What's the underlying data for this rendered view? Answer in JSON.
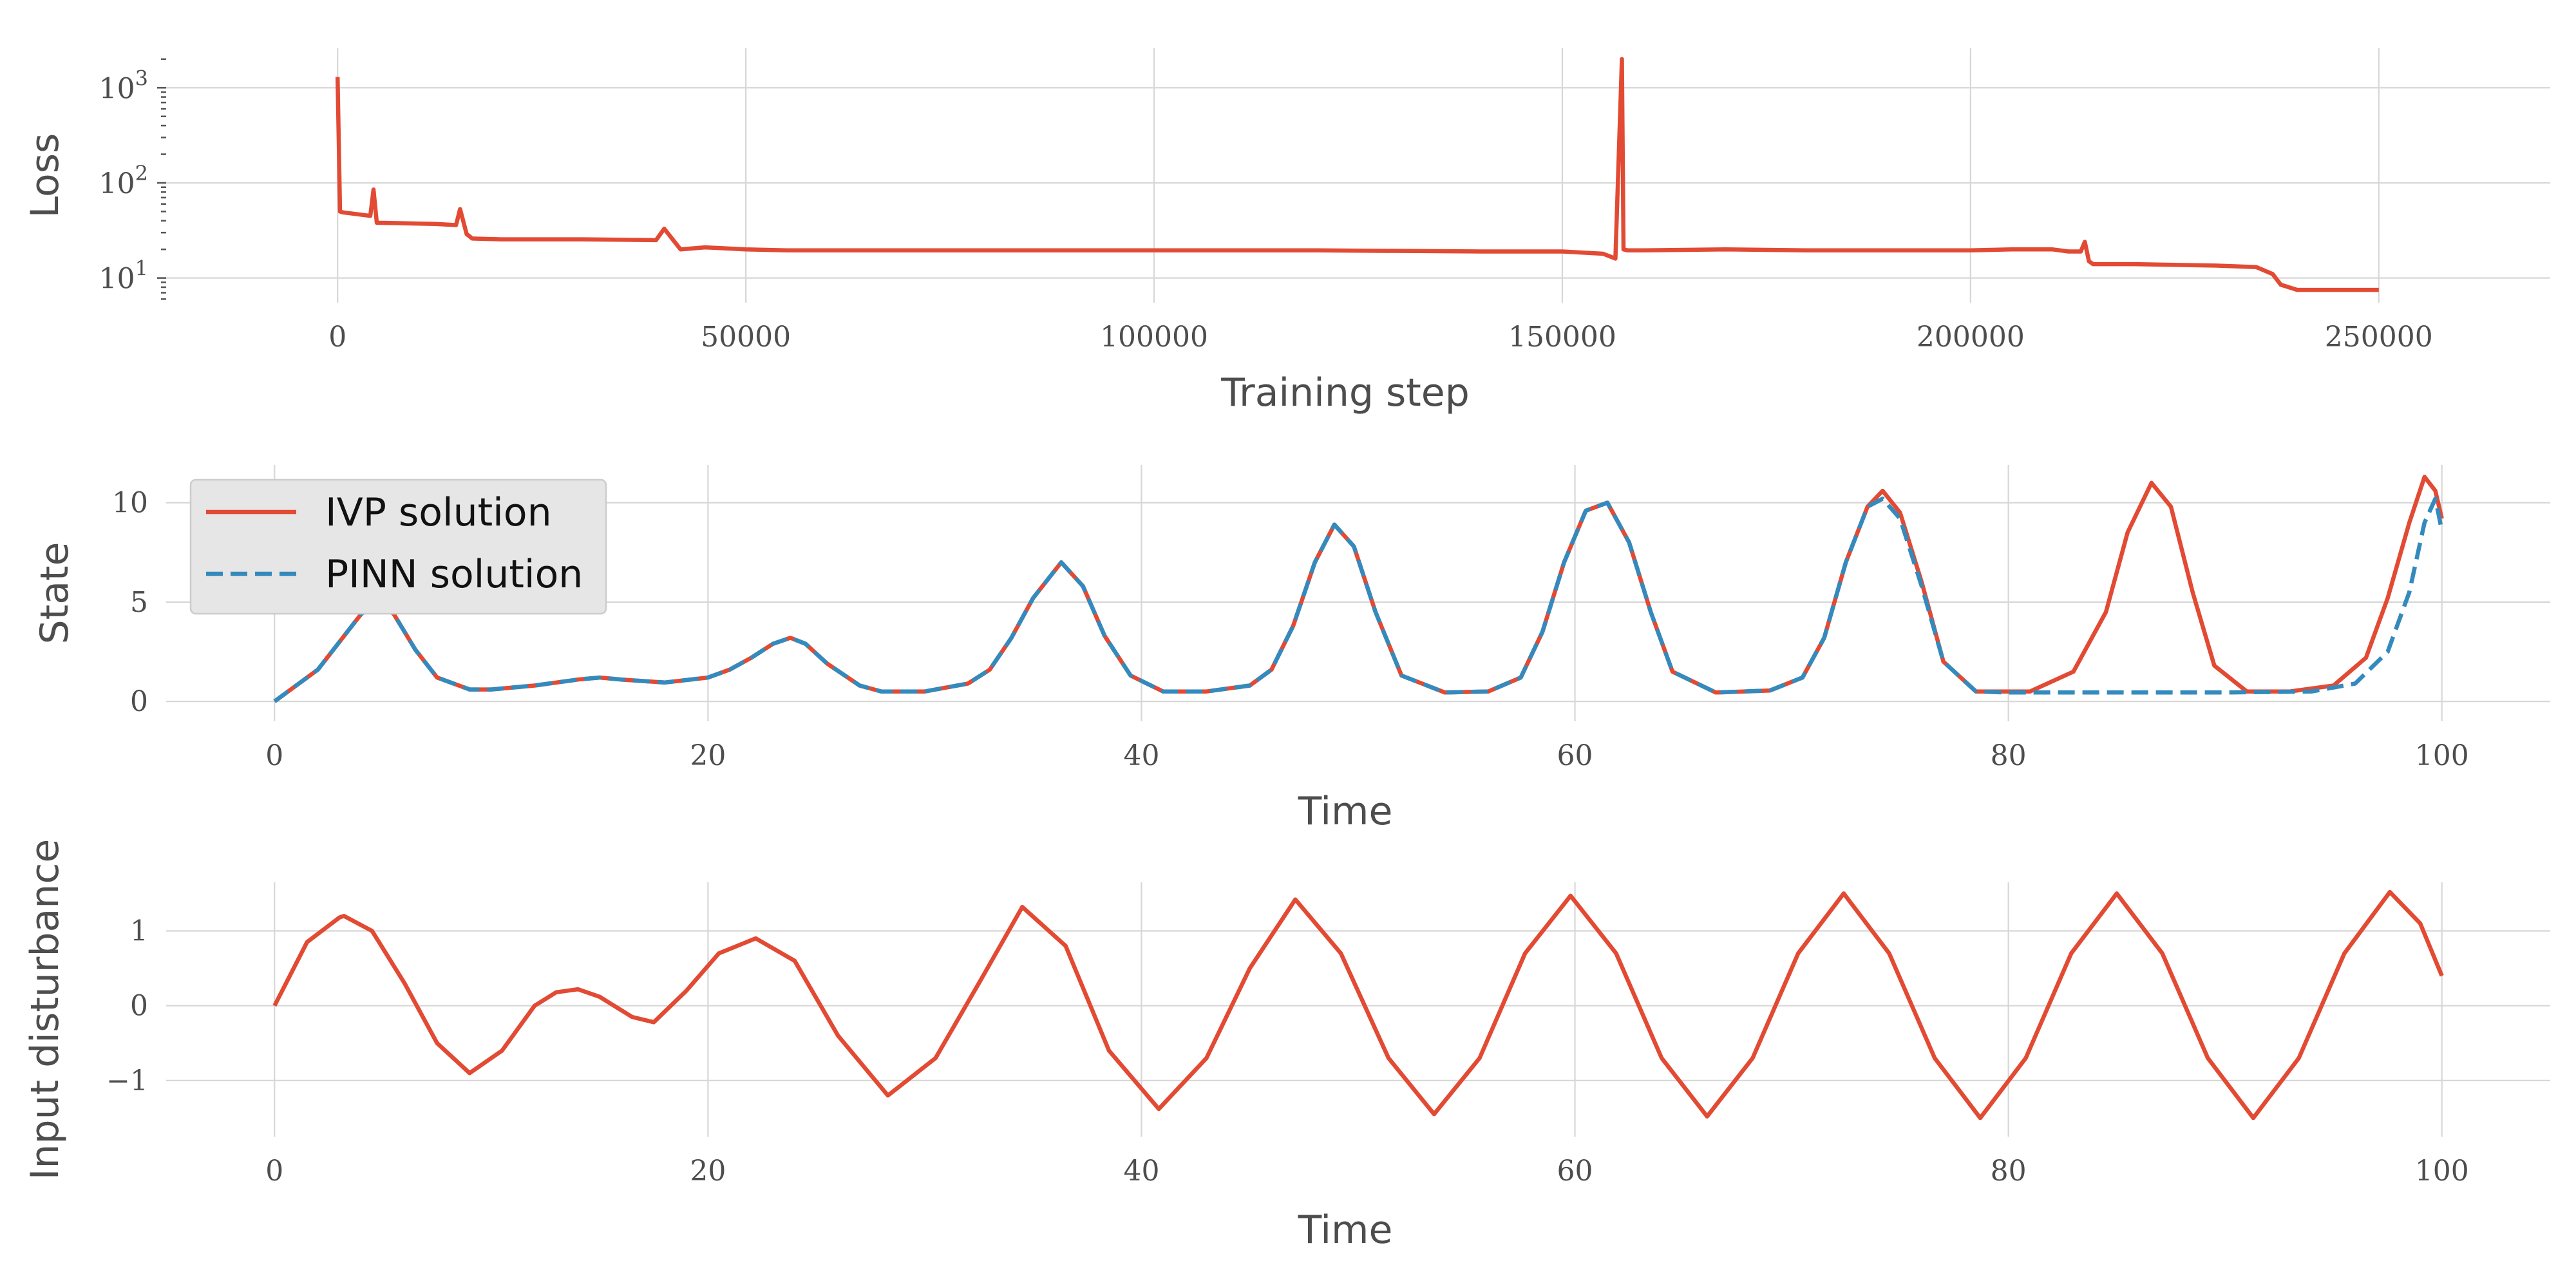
{
  "chart_data": [
    {
      "id": "loss",
      "type": "line",
      "xlabel": "Training step",
      "ylabel": "Loss",
      "yscale": "log",
      "xlim": [
        -21000,
        271000
      ],
      "ylim": [
        5.5,
        2600
      ],
      "xticks": [
        0,
        50000,
        100000,
        150000,
        200000,
        250000
      ],
      "xtick_labels": [
        "0",
        "50000",
        "100000",
        "150000",
        "200000",
        "250000"
      ],
      "yticks": [
        10,
        100,
        1000
      ],
      "ytick_labels": [
        {
          "base": "10",
          "exp": "1"
        },
        {
          "base": "10",
          "exp": "2"
        },
        {
          "base": "10",
          "exp": "3"
        }
      ],
      "grid": true,
      "color": "#e24a33",
      "series": [
        {
          "x": [
            0,
            300,
            600,
            4000,
            4400,
            4800,
            5500,
            12000,
            14500,
            15000,
            15800,
            16500,
            20000,
            30000,
            39000,
            40000,
            42000,
            45000,
            50000,
            55000,
            60000,
            80000,
            100000,
            120000,
            140000,
            150000,
            155000,
            156500,
            157300,
            157500,
            158000,
            160000,
            170000,
            180000,
            200000,
            205000,
            210000,
            212000,
            213500,
            214000,
            214500,
            215000,
            220000,
            230000,
            235000,
            237000,
            238000,
            240000,
            245000,
            250000
          ],
          "y": [
            1300,
            50,
            49,
            45,
            85,
            38,
            38,
            37,
            36,
            53,
            29,
            26,
            25.5,
            25.5,
            25,
            33,
            20,
            21,
            20,
            19.5,
            19.5,
            19.5,
            19.5,
            19.5,
            19,
            19,
            18,
            16,
            2000,
            20,
            19.5,
            19.5,
            20,
            19.5,
            19.5,
            20,
            20,
            19,
            19,
            24,
            15,
            14,
            14,
            13.5,
            13,
            11,
            8.5,
            7.5,
            7.5,
            7.5
          ]
        }
      ]
    },
    {
      "id": "state",
      "type": "line",
      "xlabel": "Time",
      "ylabel": "State",
      "xlim": [
        -5,
        105
      ],
      "ylim": [
        -1,
        11.9
      ],
      "xticks": [
        0,
        20,
        40,
        60,
        80,
        100
      ],
      "xtick_labels": [
        "0",
        "20",
        "40",
        "60",
        "80",
        "100"
      ],
      "yticks": [
        0,
        5,
        10
      ],
      "ytick_labels": [
        "0",
        "5",
        "10"
      ],
      "grid": true,
      "legend": {
        "location": "upper-left",
        "entries": [
          "IVP solution",
          "PINN solution"
        ]
      },
      "series": [
        {
          "name": "IVP solution",
          "color": "#e24a33",
          "style": "solid",
          "x": [
            0,
            1,
            2,
            3,
            4,
            4.8,
            5.5,
            6.5,
            7.5,
            9,
            10,
            12,
            14,
            15,
            16,
            18,
            20,
            21,
            22,
            23,
            23.8,
            24.5,
            25.5,
            27,
            28,
            30,
            32,
            33,
            34,
            35,
            36.3,
            37.3,
            38.3,
            39.5,
            41,
            43,
            45,
            46,
            47,
            48,
            48.9,
            49.8,
            50.8,
            52,
            54,
            56,
            57.5,
            58.5,
            59.5,
            60.5,
            61.5,
            62.5,
            63.5,
            64.5,
            66.5,
            69,
            70.5,
            71.5,
            72.5,
            73.5,
            74.2,
            75,
            76,
            77,
            78.5,
            81,
            83,
            84.5,
            85.5,
            86.6,
            87.5,
            88.5,
            89.5,
            91,
            93,
            95,
            96.5,
            97.5,
            98.5,
            99.2,
            99.7,
            100
          ],
          "y": [
            0,
            0.8,
            1.6,
            3,
            4.4,
            5,
            4.4,
            2.6,
            1.2,
            0.6,
            0.6,
            0.8,
            1.1,
            1.2,
            1.1,
            0.95,
            1.2,
            1.6,
            2.2,
            2.9,
            3.2,
            2.9,
            1.9,
            0.8,
            0.5,
            0.5,
            0.9,
            1.6,
            3.2,
            5.2,
            7,
            5.8,
            3.3,
            1.3,
            0.5,
            0.5,
            0.8,
            1.6,
            3.8,
            7,
            8.9,
            7.8,
            4.5,
            1.3,
            0.45,
            0.5,
            1.2,
            3.5,
            7,
            9.6,
            10,
            8,
            4.5,
            1.5,
            0.45,
            0.55,
            1.2,
            3.2,
            7,
            9.8,
            10.6,
            9.5,
            6,
            2,
            0.5,
            0.5,
            1.5,
            4.5,
            8.5,
            11,
            9.8,
            5.5,
            1.8,
            0.5,
            0.5,
            0.8,
            2.2,
            5.2,
            9,
            11.3,
            10.6,
            9.2
          ]
        },
        {
          "name": "PINN solution",
          "color": "#348abd",
          "style": "dashed",
          "x": [
            0,
            1,
            2,
            3,
            4,
            4.8,
            5.5,
            6.5,
            7.5,
            9,
            10,
            12,
            14,
            15,
            16,
            18,
            20,
            21,
            22,
            23,
            23.8,
            24.5,
            25.5,
            27,
            28,
            30,
            32,
            33,
            34,
            35,
            36.3,
            37.3,
            38.3,
            39.5,
            41,
            43,
            45,
            46,
            47,
            48,
            48.9,
            49.8,
            50.8,
            52,
            54,
            56,
            57.5,
            58.5,
            59.5,
            60.5,
            61.5,
            62.5,
            63.5,
            64.5,
            66.5,
            69,
            70.5,
            71.5,
            72.5,
            73.5,
            74.2,
            75,
            76,
            77,
            78.5,
            80,
            85,
            90,
            94,
            96,
            97.5,
            98.5,
            99.2,
            99.7,
            100
          ],
          "y": [
            0,
            0.8,
            1.6,
            3,
            4.4,
            5,
            4.4,
            2.6,
            1.2,
            0.6,
            0.6,
            0.8,
            1.1,
            1.2,
            1.1,
            0.95,
            1.2,
            1.6,
            2.2,
            2.9,
            3.2,
            2.9,
            1.9,
            0.8,
            0.5,
            0.5,
            0.9,
            1.6,
            3.2,
            5.2,
            7,
            5.8,
            3.3,
            1.3,
            0.5,
            0.5,
            0.8,
            1.6,
            3.8,
            7,
            8.9,
            7.8,
            4.5,
            1.3,
            0.45,
            0.5,
            1.2,
            3.5,
            7,
            9.6,
            10,
            8,
            4.5,
            1.5,
            0.45,
            0.55,
            1.2,
            3.2,
            7,
            9.8,
            10.2,
            9.2,
            5.8,
            2,
            0.5,
            0.45,
            0.45,
            0.45,
            0.5,
            0.9,
            2.5,
            5.5,
            9,
            10.2,
            8.6
          ]
        }
      ]
    },
    {
      "id": "disturbance",
      "type": "line",
      "xlabel": "Time",
      "ylabel": "Input disturbance",
      "xlim": [
        -5,
        105
      ],
      "ylim": [
        -1.75,
        1.65
      ],
      "xticks": [
        0,
        20,
        40,
        60,
        80,
        100
      ],
      "xtick_labels": [
        "0",
        "20",
        "40",
        "60",
        "80",
        "100"
      ],
      "yticks": [
        -1,
        0,
        1
      ],
      "ytick_labels": [
        "−1",
        "0",
        "1"
      ],
      "grid": true,
      "color": "#e24a33",
      "series": [
        {
          "x": [
            0,
            1.5,
            3,
            3.2,
            4.5,
            6,
            7.5,
            9,
            10.5,
            12,
            13,
            14,
            15,
            16.5,
            17.5,
            19,
            20.5,
            22.2,
            24,
            26,
            28.3,
            30.5,
            32.5,
            34.5,
            36.5,
            38.5,
            40.8,
            43,
            45,
            47.1,
            49.2,
            51.4,
            53.5,
            55.6,
            57.7,
            59.8,
            61.9,
            64,
            66.1,
            68.2,
            70.3,
            72.4,
            74.5,
            76.6,
            78.7,
            80.8,
            82.9,
            85,
            87.1,
            89.2,
            91.3,
            93.4,
            95.5,
            97.6,
            99,
            100
          ],
          "y": [
            0,
            0.85,
            1.18,
            1.2,
            1.0,
            0.3,
            -0.5,
            -0.9,
            -0.6,
            0,
            0.18,
            0.22,
            0.12,
            -0.15,
            -0.22,
            0.2,
            0.7,
            0.9,
            0.6,
            -0.4,
            -1.2,
            -0.7,
            0.3,
            1.32,
            0.8,
            -0.6,
            -1.38,
            -0.7,
            0.5,
            1.42,
            0.7,
            -0.7,
            -1.45,
            -0.7,
            0.7,
            1.47,
            0.7,
            -0.7,
            -1.48,
            -0.7,
            0.7,
            1.5,
            0.7,
            -0.7,
            -1.5,
            -0.7,
            0.7,
            1.5,
            0.7,
            -0.7,
            -1.5,
            -0.7,
            0.7,
            1.52,
            1.1,
            0.4
          ]
        }
      ]
    }
  ]
}
